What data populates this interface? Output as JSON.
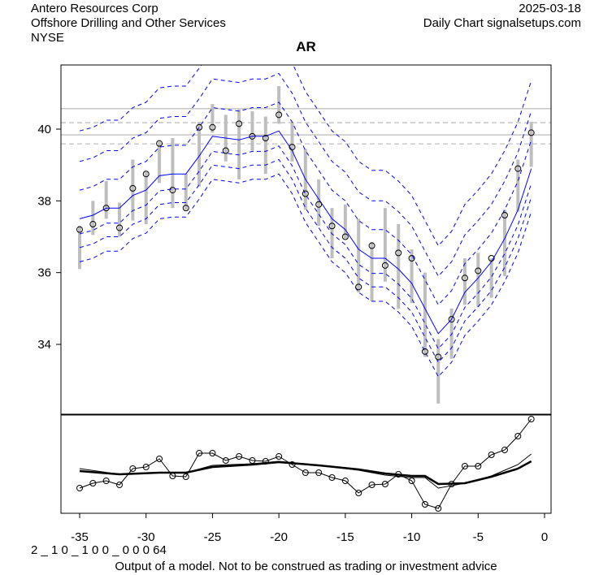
{
  "header": {
    "company": "Antero Resources Corp",
    "industry": "Offshore Drilling and Other Services",
    "exchange": "NYSE",
    "date": "2025-03-18",
    "source": "Daily Chart signalsetups.com"
  },
  "footer": {
    "code": "2 _ 1 0 _ 1 0 0 _ 0 0 0   64",
    "disclaimer": "Output of a model. Not to be construed as trading or investment advice"
  },
  "colors": {
    "band": "#0000ff",
    "range": "#bebebe",
    "level": "#c0c0c0",
    "axis": "#000000"
  },
  "chart_data": [
    {
      "type": "line",
      "title": "AR",
      "xlabel": "",
      "ylabel": "",
      "xlim": [
        -36,
        0.5
      ],
      "ylim": [
        32,
        41.8
      ],
      "xticks": [
        -35,
        -30,
        -25,
        -20,
        -15,
        -10,
        -5,
        0
      ],
      "xtick_labels": [
        "-35",
        "-30",
        "-25",
        "-20",
        "-15",
        "-10",
        "-5",
        "0"
      ],
      "yticks": [
        34,
        36,
        38,
        40
      ],
      "ytick_labels": [
        "34",
        "36",
        "38",
        "40"
      ],
      "x": [
        -35,
        -34,
        -33,
        -32,
        -31,
        -30,
        -29,
        -28,
        -27,
        -26,
        -25,
        -24,
        -23,
        -22,
        -21,
        -20,
        -19,
        -18,
        -17,
        -16,
        -15,
        -14,
        -13,
        -12,
        -11,
        -10,
        -9,
        -8,
        -7,
        -6,
        -5,
        -4,
        -3,
        -2,
        -1
      ],
      "close": [
        37.2,
        37.35,
        37.8,
        37.25,
        38.35,
        38.75,
        39.6,
        38.3,
        37.8,
        40.05,
        40.05,
        39.4,
        40.15,
        39.8,
        39.75,
        40.4,
        39.5,
        38.2,
        37.9,
        37.3,
        37.0,
        35.6,
        36.75,
        36.2,
        36.55,
        36.4,
        33.8,
        33.65,
        34.7,
        35.85,
        36.05,
        36.4,
        37.6,
        38.9,
        39.9
      ],
      "high": [
        37.3,
        38.0,
        38.55,
        37.95,
        39.15,
        38.8,
        39.65,
        39.75,
        38.75,
        40.2,
        40.7,
        40.4,
        40.55,
        40.5,
        40.35,
        41.2,
        40.2,
        39.45,
        38.6,
        37.8,
        37.9,
        37.5,
        36.85,
        37.8,
        37.35,
        36.65,
        36.0,
        34.15,
        35.0,
        36.4,
        36.55,
        36.4,
        37.75,
        39.15,
        40.2
      ],
      "low": [
        36.1,
        37.05,
        37.5,
        37.0,
        37.45,
        37.35,
        38.5,
        37.8,
        37.75,
        38.4,
        39.9,
        39.1,
        38.6,
        39.4,
        38.75,
        40.15,
        39.1,
        37.75,
        37.3,
        36.4,
        36.95,
        35.45,
        35.2,
        35.75,
        35.0,
        35.15,
        33.65,
        32.35,
        33.6,
        35.1,
        35.05,
        35.3,
        35.9,
        37.7,
        38.95
      ],
      "center": [
        37.5,
        37.6,
        37.8,
        37.8,
        38.15,
        38.3,
        38.7,
        38.75,
        38.75,
        39.25,
        39.8,
        39.75,
        39.7,
        39.8,
        39.8,
        39.95,
        39.4,
        38.6,
        38.05,
        37.5,
        37.2,
        36.65,
        36.4,
        36.4,
        36.1,
        35.7,
        35.0,
        34.3,
        34.7,
        35.45,
        35.85,
        36.3,
        36.95,
        37.75,
        38.9
      ],
      "band_offsets_upper": [
        0.8,
        1.6,
        2.45
      ],
      "band_offsets_lower": [
        0.42,
        0.8,
        1.2
      ],
      "levels_solid": [
        40.57,
        39.84
      ],
      "levels_dashed": [
        40.18,
        39.59
      ]
    },
    {
      "type": "line",
      "title": "",
      "x": [
        -35,
        -34,
        -33,
        -32,
        -31,
        -30,
        -29,
        -28,
        -27,
        -26,
        -25,
        -24,
        -23,
        -22,
        -21,
        -20,
        -19,
        -18,
        -17,
        -16,
        -15,
        -14,
        -13,
        -12,
        -11,
        -10,
        -9,
        -8,
        -7,
        -6,
        -5,
        -4,
        -3,
        -2,
        -1
      ],
      "ylim": [
        0,
        119
      ],
      "oscillator": [
        29,
        35,
        38,
        33,
        53,
        55,
        65,
        44,
        43,
        72,
        72,
        63,
        68,
        63,
        62,
        68,
        58,
        48,
        48,
        42,
        38,
        23,
        33,
        34,
        46,
        38,
        9,
        4,
        34,
        56,
        56,
        70,
        76,
        93,
        114
      ],
      "smooth_fast_x": [
        -35,
        -32,
        -29,
        -27,
        -25,
        -22,
        -20,
        -17,
        -14,
        -12,
        -10,
        -9,
        -8,
        -6,
        -4,
        -2,
        -1
      ],
      "smooth_fast": [
        53,
        46,
        48,
        48,
        57,
        59,
        62,
        57,
        51,
        45,
        42,
        42,
        29,
        35,
        44,
        58,
        71
      ],
      "smooth_slow_x": [
        -35,
        -32,
        -29,
        -27,
        -25,
        -22,
        -20,
        -17,
        -14,
        -12,
        -10,
        -9,
        -8,
        -6,
        -4,
        -2,
        -1
      ],
      "smooth_slow": [
        50,
        46,
        48,
        48,
        55,
        58,
        61,
        57,
        52,
        47,
        44,
        44,
        34,
        35,
        43,
        53,
        62
      ]
    }
  ]
}
